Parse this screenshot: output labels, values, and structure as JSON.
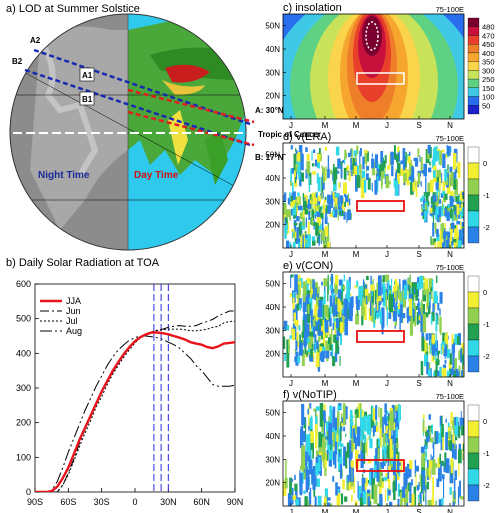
{
  "panel_a": {
    "title": "a) LOD at Summer Solstice",
    "labels": {
      "A2": "A2",
      "B2": "B2",
      "A1": "A1",
      "B1": "B1"
    },
    "line_A": "A: 30°N",
    "tropic": "Tropic of Cancer",
    "line_B": "B: 17°N",
    "night": "Night Time",
    "day": "Day Time",
    "colors": {
      "night": "#1a2a9a",
      "day": "#d01010",
      "lineA": "#1a2ab0",
      "lineB": "#e02020"
    }
  },
  "chart_data": [
    {
      "id": "b",
      "type": "line",
      "title": "b) Daily Solar Radiation at TOA",
      "xlabel": "",
      "ylabel": "",
      "xlim": [
        -90,
        90
      ],
      "ylim": [
        0,
        600
      ],
      "xticks": [
        -90,
        -60,
        -30,
        0,
        30,
        60,
        90
      ],
      "xtick_labels": [
        "90S",
        "60S",
        "30S",
        "0",
        "30N",
        "60N",
        "90N"
      ],
      "yticks": [
        0,
        100,
        200,
        300,
        400,
        500,
        600
      ],
      "ytick_labels": [
        "0",
        "100",
        "200",
        "300",
        "400",
        "500",
        "600"
      ],
      "vlines": [
        17,
        23.5,
        30
      ],
      "legend_position": "upper-left",
      "series": [
        {
          "name": "JJA",
          "color": "#e8141c",
          "dash": "",
          "x": [
            -90,
            -80,
            -75,
            -70,
            -65,
            -60,
            -55,
            -50,
            -45,
            -40,
            -35,
            -30,
            -25,
            -20,
            -15,
            -10,
            -5,
            0,
            5,
            10,
            15,
            20,
            25,
            30,
            35,
            40,
            45,
            50,
            55,
            60,
            65,
            70,
            75,
            80,
            85,
            90
          ],
          "y": [
            0,
            0,
            3,
            15,
            40,
            70,
            110,
            150,
            185,
            220,
            255,
            290,
            320,
            350,
            375,
            398,
            418,
            435,
            447,
            455,
            460,
            460,
            458,
            455,
            450,
            445,
            440,
            432,
            428,
            425,
            418,
            415,
            420,
            428,
            430,
            432
          ]
        },
        {
          "name": "Jun",
          "color": "#000",
          "dash": "9 3 2 3",
          "x": [
            -90,
            -75,
            -70,
            -65,
            -60,
            -55,
            -50,
            -45,
            -40,
            -35,
            -30,
            -25,
            -20,
            -15,
            -10,
            -5,
            0,
            5,
            10,
            15,
            20,
            25,
            30,
            35,
            40,
            45,
            50,
            55,
            60,
            65,
            70,
            75,
            80,
            85,
            90
          ],
          "y": [
            0,
            0,
            0,
            20,
            55,
            95,
            140,
            180,
            215,
            255,
            285,
            320,
            345,
            370,
            395,
            415,
            432,
            445,
            455,
            462,
            467,
            470,
            475,
            478,
            480,
            478,
            478,
            480,
            487,
            492,
            498,
            508,
            515,
            522,
            522
          ]
        },
        {
          "name": "Jul",
          "color": "#000",
          "dash": "2 2",
          "x": [
            -90,
            -75,
            -70,
            -65,
            -60,
            -55,
            -50,
            -45,
            -40,
            -35,
            -30,
            -25,
            -20,
            -15,
            -10,
            -5,
            0,
            5,
            10,
            15,
            20,
            25,
            30,
            35,
            40,
            45,
            50,
            55,
            60,
            65,
            70,
            75,
            80,
            85,
            90
          ],
          "y": [
            0,
            0,
            0,
            20,
            50,
            90,
            130,
            170,
            205,
            245,
            275,
            310,
            340,
            365,
            390,
            410,
            430,
            445,
            455,
            462,
            466,
            468,
            470,
            470,
            470,
            468,
            465,
            465,
            467,
            470,
            475,
            478,
            488,
            492,
            492
          ]
        },
        {
          "name": "Aug",
          "color": "#000",
          "dash": "12 3 2 3 2 3",
          "x": [
            -90,
            -80,
            -75,
            -70,
            -65,
            -60,
            -55,
            -50,
            -45,
            -40,
            -35,
            -30,
            -25,
            -20,
            -15,
            -10,
            -5,
            0,
            5,
            10,
            15,
            20,
            25,
            30,
            35,
            40,
            45,
            50,
            55,
            60,
            65,
            70,
            75,
            80,
            85,
            90
          ],
          "y": [
            0,
            0,
            5,
            30,
            70,
            115,
            155,
            195,
            235,
            270,
            305,
            335,
            365,
            390,
            410,
            425,
            438,
            445,
            450,
            450,
            448,
            445,
            440,
            432,
            425,
            415,
            400,
            385,
            365,
            350,
            330,
            310,
            305,
            305,
            305,
            308
          ]
        }
      ]
    },
    {
      "id": "c",
      "type": "heatmap",
      "title": "c) insolation",
      "region": "75-100E",
      "x_categories": [
        "J",
        "M",
        "M",
        "J",
        "S",
        "N"
      ],
      "y_ticks": [
        20,
        30,
        40,
        50
      ],
      "y_tick_labels": [
        "20N",
        "30N",
        "40N",
        "50N"
      ],
      "colorbar_labels": [
        "480",
        "470",
        "450",
        "400",
        "350",
        "300",
        "250",
        "150",
        "100",
        "50"
      ],
      "colorbar_colors": [
        "#7a0030",
        "#c8103c",
        "#e8402a",
        "#ee7e2a",
        "#f6a62e",
        "#fad44a",
        "#c8e25a",
        "#5ed282",
        "#3ec8e6",
        "#2a6ef0",
        "#1a22ca"
      ]
    },
    {
      "id": "d",
      "type": "heatmap",
      "title": "d) v(ERA)",
      "region": "75-100E",
      "x_categories": [
        "J",
        "M",
        "M",
        "J",
        "S",
        "N"
      ],
      "y_ticks": [
        20,
        30,
        40,
        50
      ],
      "y_tick_labels": [
        "20N",
        "30N",
        "40N",
        "50N"
      ],
      "colorbar_labels": [
        "0",
        "-1",
        "-2"
      ]
    },
    {
      "id": "e",
      "type": "heatmap",
      "title": "e) v(CON)",
      "region": "75-100E",
      "x_categories": [
        "J",
        "M",
        "M",
        "J",
        "S",
        "N"
      ],
      "y_ticks": [
        20,
        30,
        40,
        50
      ],
      "y_tick_labels": [
        "20N",
        "30N",
        "40N",
        "50N"
      ],
      "colorbar_labels": [
        "0",
        "-1",
        "-2"
      ]
    },
    {
      "id": "f",
      "type": "heatmap",
      "title": "f) v(NoTIP)",
      "region": "75-100E",
      "x_categories": [
        "J",
        "M",
        "M",
        "J",
        "S",
        "N"
      ],
      "y_ticks": [
        20,
        30,
        40,
        50
      ],
      "y_tick_labels": [
        "20N",
        "30N",
        "40N",
        "50N"
      ],
      "colorbar_labels": [
        "0",
        "-1",
        "-2"
      ]
    }
  ],
  "v_colorbar_colors": [
    "#ffffff",
    "#f2ee32",
    "#92d050",
    "#20a050",
    "#30d8e8",
    "#2a82e6"
  ]
}
